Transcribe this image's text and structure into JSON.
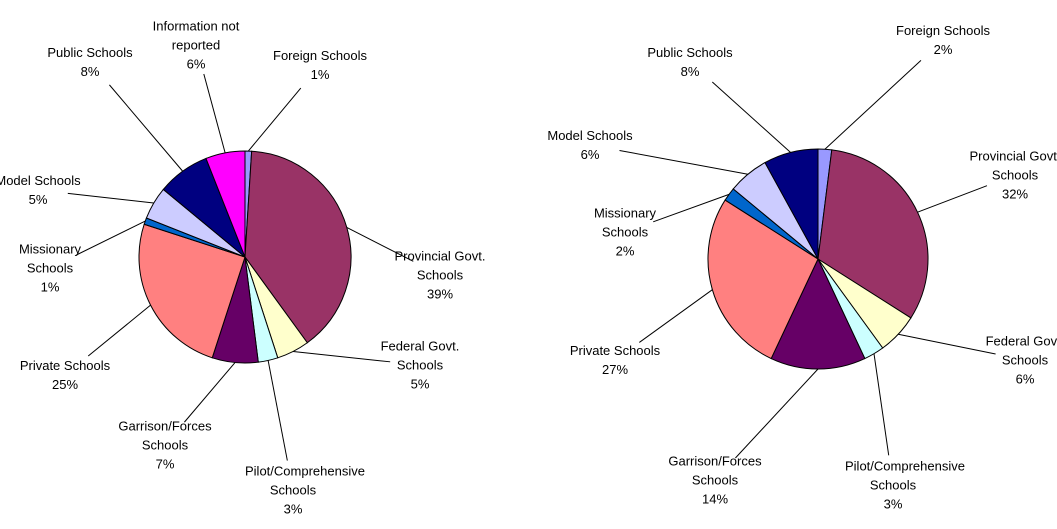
{
  "chart_data": [
    {
      "type": "pie",
      "categories": [
        "Foreign Schools",
        "Provincial Govt. Schools",
        "Federal Govt. Schools",
        "Pilot/Comprehensive Schools",
        "Garrison/Forces Schools",
        "Private Schools",
        "Missionary Schools",
        "Model Schools",
        "Public Schools",
        "Information not reported"
      ],
      "values": [
        1,
        39,
        5,
        3,
        7,
        25,
        1,
        5,
        8,
        6
      ],
      "value_labels": [
        "1%",
        "39%",
        "5%",
        "3%",
        "7%",
        "25%",
        "1%",
        "5%",
        "8%",
        "6%"
      ],
      "colors": [
        "#9999ff",
        "#993366",
        "#ffffcc",
        "#ccffff",
        "#660066",
        "#ff8080",
        "#0066cc",
        "#ccccff",
        "#000080",
        "#ff00ff"
      ]
    },
    {
      "type": "pie",
      "categories": [
        "Foreign Schools",
        "Provincial Govt. Schools",
        "Federal Govt. Schools",
        "Pilot/Comprehensive Schools",
        "Garrison/Forces Schools",
        "Private Schools",
        "Missionary Schools",
        "Model Schools",
        "Public Schools"
      ],
      "values": [
        2,
        32,
        6,
        3,
        14,
        27,
        2,
        6,
        8
      ],
      "value_labels": [
        "2%",
        "32%",
        "6%",
        "3%",
        "14%",
        "27%",
        "2%",
        "6%",
        "8%"
      ],
      "colors": [
        "#9999ff",
        "#993366",
        "#ffffcc",
        "#ccffff",
        "#660066",
        "#ff8080",
        "#0066cc",
        "#ccccff",
        "#000080"
      ]
    }
  ]
}
